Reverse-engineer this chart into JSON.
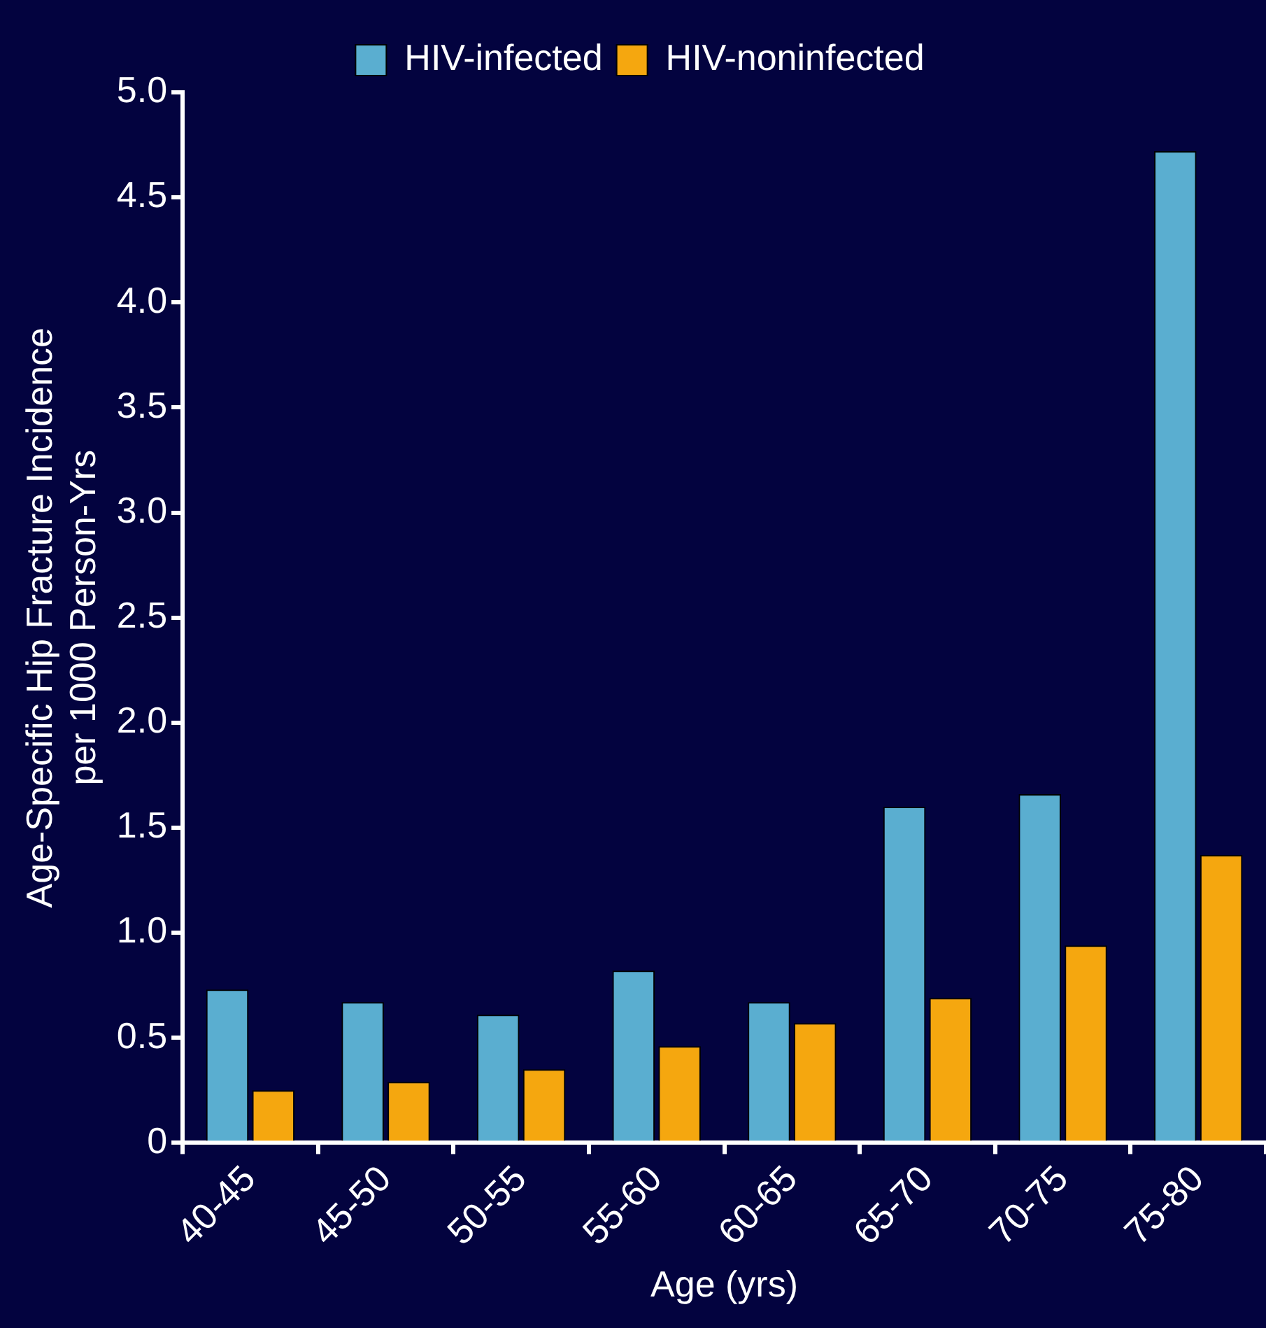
{
  "chart_data": {
    "type": "bar",
    "xlabel": "Age (yrs)",
    "ylabel": "Age-Specific Hip Fracture Incidence\nper 1000 Person-Yrs",
    "categories": [
      "40-45",
      "45-50",
      "50-55",
      "55-60",
      "60-65",
      "65-70",
      "70-75",
      "75-80"
    ],
    "series": [
      {
        "name": "HIV-infected",
        "color": "#5aaed0",
        "values": [
          0.73,
          0.67,
          0.61,
          0.82,
          0.67,
          1.6,
          1.66,
          4.72
        ]
      },
      {
        "name": "HIV-noninfected",
        "color": "#f5a70f",
        "values": [
          0.25,
          0.29,
          0.35,
          0.46,
          0.57,
          0.69,
          0.94,
          1.37
        ]
      }
    ],
    "ylim": [
      0,
      5
    ],
    "yticks": [
      0,
      0.5,
      {
        "value": 1,
        "label": "1.0"
      },
      1.5,
      {
        "value": 2,
        "label": "2.0"
      },
      2.5,
      {
        "value": 3,
        "label": "3.0"
      },
      3.5,
      {
        "value": 4,
        "label": "4.0"
      },
      4.5,
      {
        "value": 5,
        "label": "5.0"
      }
    ],
    "grid": false,
    "legend": "top"
  }
}
